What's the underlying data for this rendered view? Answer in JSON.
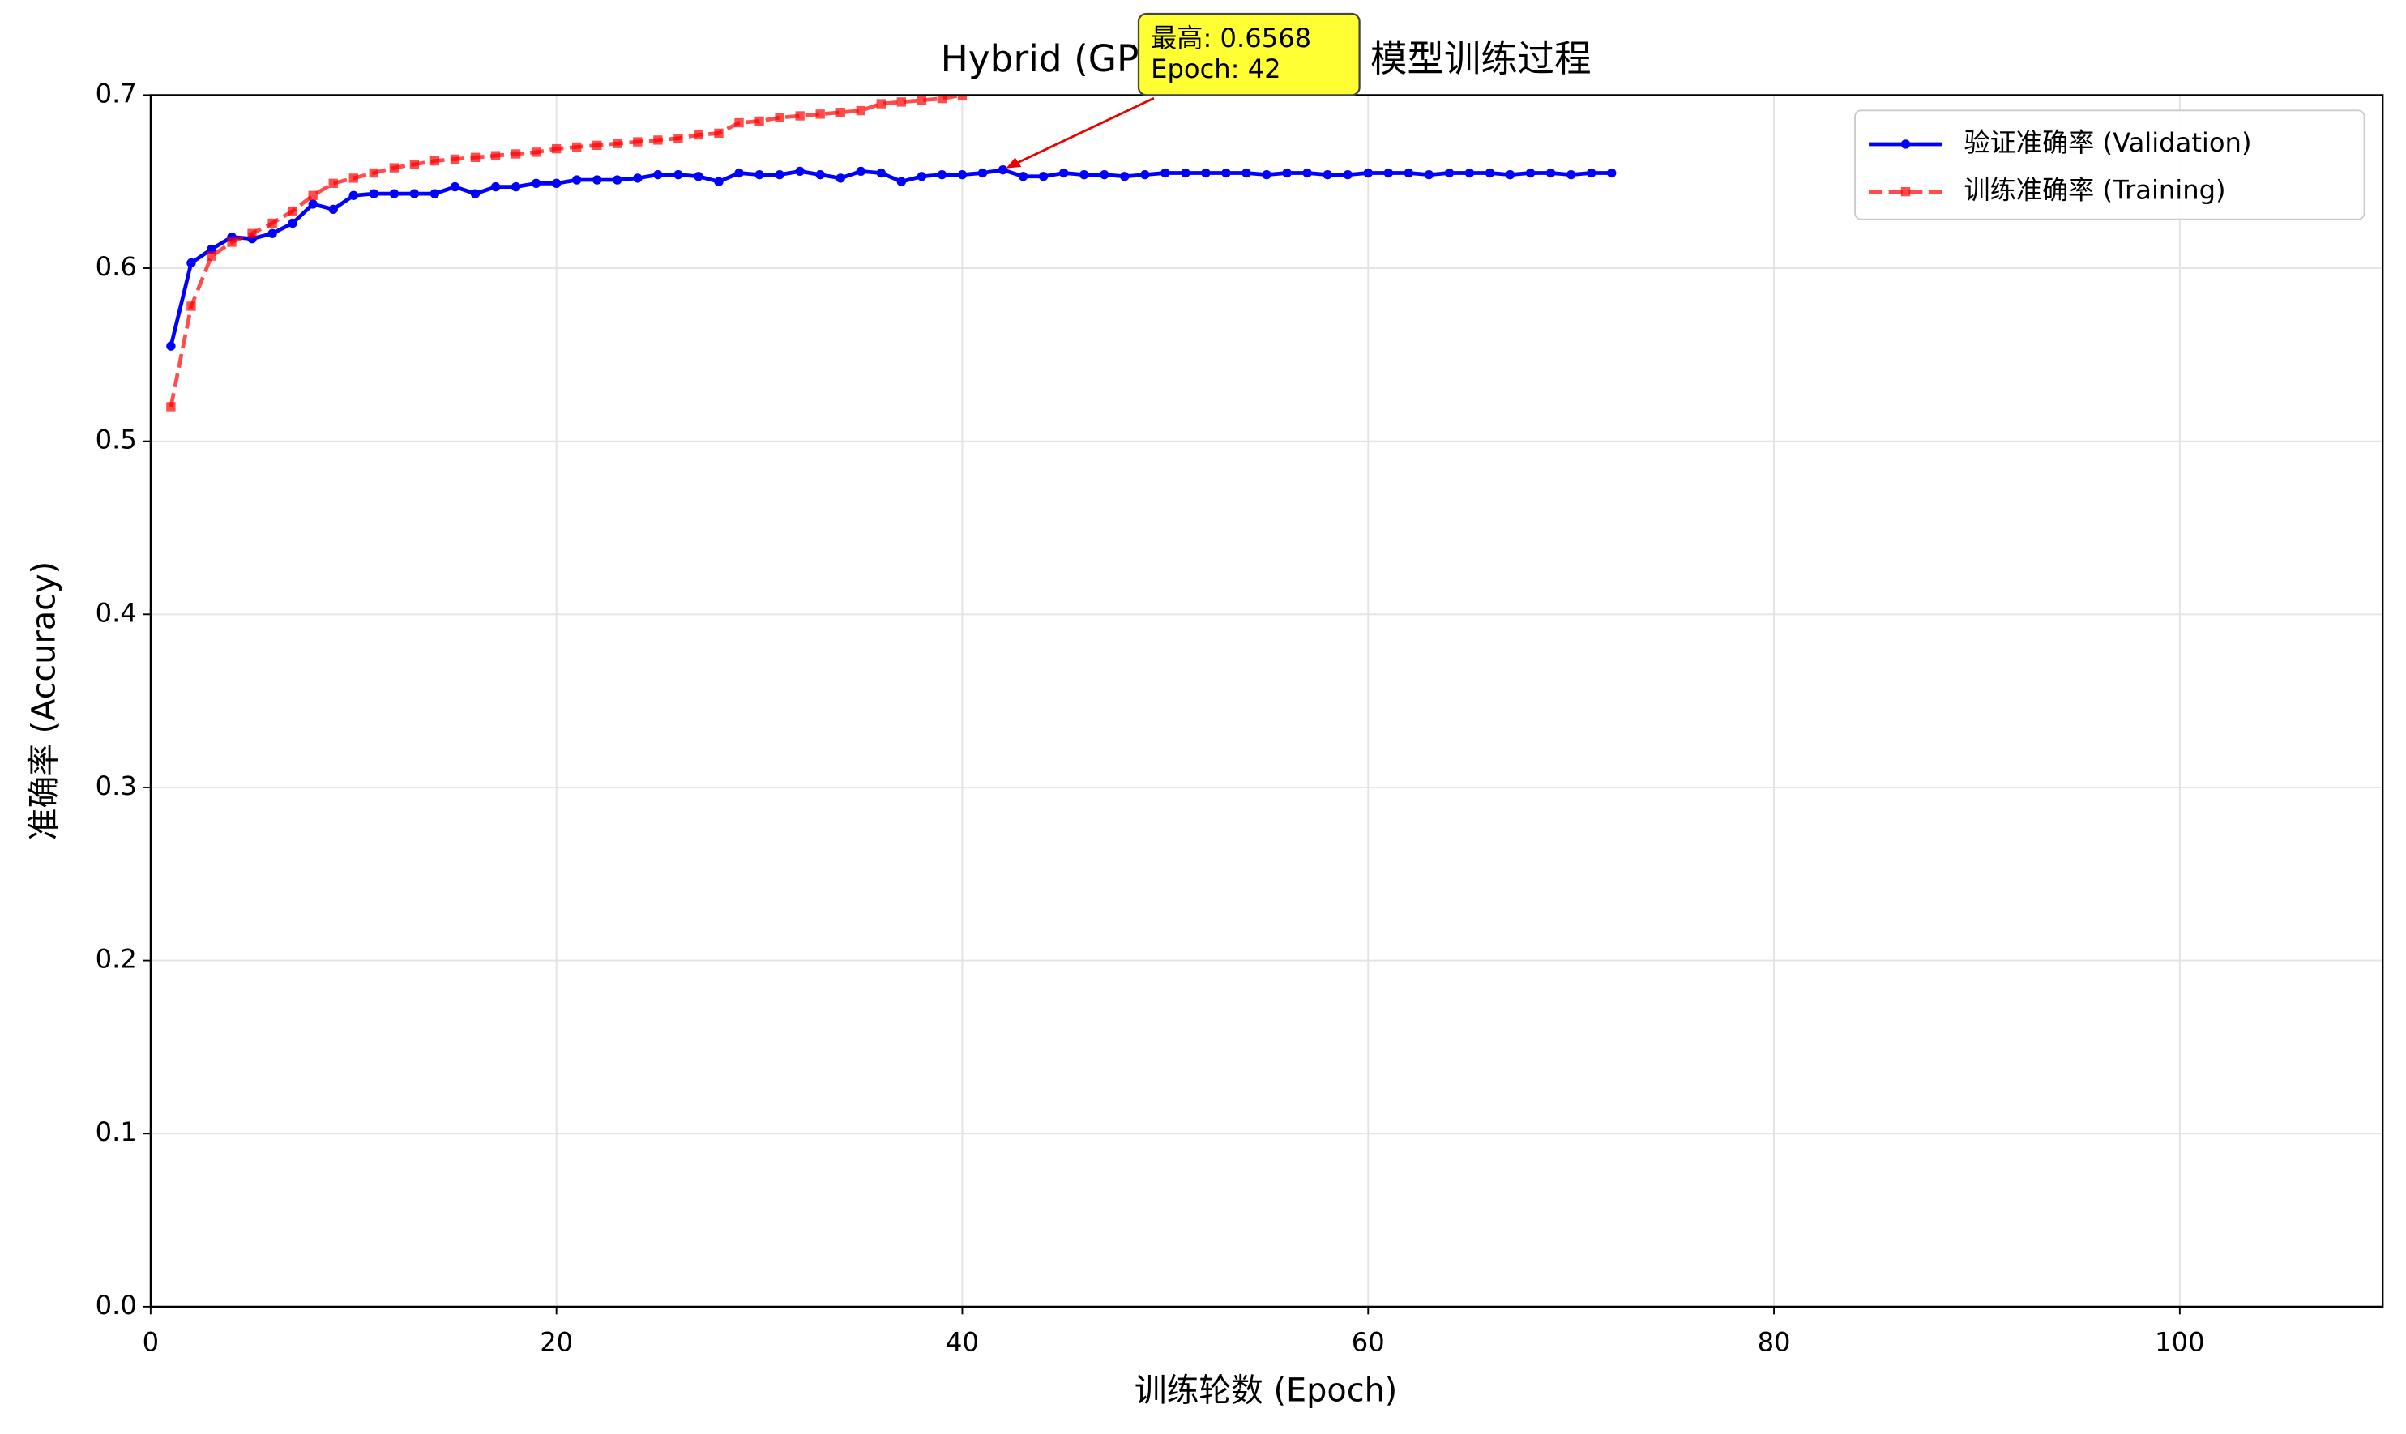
{
  "chart_data": {
    "type": "line",
    "title": "Hybrid (GPR Augment) 模型训练过程",
    "x_label": "训练轮数 (Epoch)",
    "y_label": "准确率 (Accuracy)",
    "xlim": [
      0,
      110
    ],
    "xticks": [
      0,
      20,
      40,
      60,
      80,
      100
    ],
    "ylim": [
      0,
      0.7
    ],
    "yticks": [
      {
        "value": 0,
        "label": "0.0"
      },
      0.1,
      0.2,
      0.3,
      0.4,
      0.5,
      0.6,
      0.7
    ],
    "grid": true,
    "legend": "upper right",
    "series": [
      {
        "name": "验证准确率 (Validation)",
        "color": "#0000ff",
        "marker": "circle",
        "dashed": false,
        "x": [
          1,
          2,
          3,
          4,
          5,
          6,
          7,
          8,
          9,
          10,
          11,
          12,
          13,
          14,
          15,
          16,
          17,
          18,
          19,
          20,
          21,
          22,
          23,
          24,
          25,
          26,
          27,
          28,
          29,
          30,
          31,
          32,
          33,
          34,
          35,
          36,
          37,
          38,
          39,
          40,
          41,
          42,
          43,
          44,
          45,
          46,
          47,
          48,
          49,
          50,
          51,
          52,
          53,
          54,
          55,
          56,
          57,
          58,
          59,
          60,
          61,
          62,
          63,
          64,
          65,
          66,
          67,
          68,
          69,
          70,
          71,
          72
        ],
        "values": [
          0.555,
          0.603,
          0.611,
          0.618,
          0.617,
          0.62,
          0.626,
          0.637,
          0.634,
          0.642,
          0.643,
          0.643,
          0.643,
          0.643,
          0.647,
          0.643,
          0.647,
          0.647,
          0.649,
          0.649,
          0.651,
          0.651,
          0.651,
          0.652,
          0.654,
          0.654,
          0.653,
          0.65,
          0.655,
          0.654,
          0.654,
          0.656,
          0.654,
          0.652,
          0.656,
          0.655,
          0.65,
          0.653,
          0.654,
          0.654,
          0.655,
          0.6568,
          0.653,
          0.653,
          0.655,
          0.654,
          0.654,
          0.653,
          0.654,
          0.655,
          0.655,
          0.655,
          0.655,
          0.655,
          0.654,
          0.655,
          0.655,
          0.654,
          0.654,
          0.655,
          0.655,
          0.655,
          0.654,
          0.655,
          0.655,
          0.655,
          0.654,
          0.655,
          0.655,
          0.654,
          0.655,
          0.655
        ]
      },
      {
        "name": "训练准确率 (Training)",
        "color": "#ff0000",
        "marker": "square",
        "dashed": true,
        "x": [
          1,
          2,
          3,
          4,
          5,
          6,
          7,
          8,
          9,
          10,
          11,
          12,
          13,
          14,
          15,
          16,
          17,
          18,
          19,
          20,
          21,
          22,
          23,
          24,
          25,
          26,
          27,
          28,
          29,
          30,
          31,
          32,
          33,
          34,
          35,
          36,
          37,
          38,
          39,
          40
        ],
        "values": [
          0.52,
          0.578,
          0.607,
          0.615,
          0.62,
          0.626,
          0.633,
          0.642,
          0.649,
          0.652,
          0.655,
          0.658,
          0.66,
          0.662,
          0.663,
          0.664,
          0.665,
          0.666,
          0.667,
          0.669,
          0.67,
          0.671,
          0.672,
          0.673,
          0.674,
          0.675,
          0.677,
          0.678,
          0.684,
          0.685,
          0.687,
          0.688,
          0.689,
          0.69,
          0.691,
          0.695,
          0.696,
          0.697,
          0.698,
          0.7
        ]
      }
    ],
    "annotation": {
      "lines": [
        "最高: 0.6568",
        "Epoch: 42"
      ],
      "x": 42,
      "y": 0.6568,
      "color": "#ffff33"
    }
  }
}
